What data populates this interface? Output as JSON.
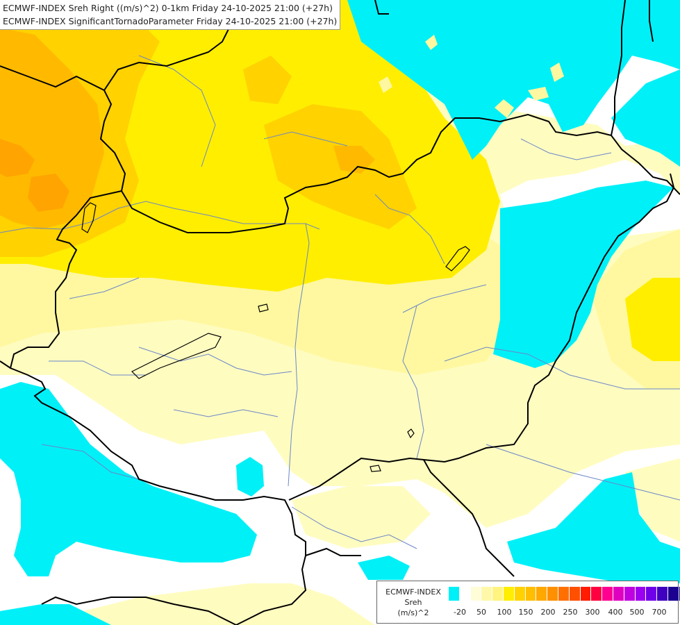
{
  "header": {
    "line1": "ECMWF-INDEX Sreh Right ((m/s)^2) 0-1km Friday 24-10-2025 21:00 (+27h)",
    "line2": "ECMWF-INDEX SignificantTornadoParameter Friday 24-10-2025 21:00 (+27h)"
  },
  "legend": {
    "line1": "ECMWF-INDEX",
    "line2": "Sreh",
    "line3": "(m/s)^2",
    "colors": [
      "#00f0f8",
      "#ffffff",
      "#fffcd8",
      "#fff8a8",
      "#fff480",
      "#ffee00",
      "#ffd200",
      "#ffbe00",
      "#ffa800",
      "#ff9000",
      "#ff7000",
      "#ff5000",
      "#ff1c00",
      "#ff0040",
      "#ff0090",
      "#e000c0",
      "#c000e0",
      "#9c00f0",
      "#7000e8",
      "#4000c0",
      "#1c0090",
      "#000070"
    ],
    "ticks": [
      "-20",
      "50",
      "100",
      "150",
      "200",
      "250",
      "300",
      "400",
      "500",
      "700"
    ]
  },
  "palette": {
    "cyan": "#00f0f8",
    "white": "#ffffff",
    "pale_yellow": "#fffcc0",
    "light_yellow": "#fff8a0",
    "yellow": "#ffee00",
    "gold": "#ffd200",
    "orange": "#ffba00",
    "deep_orange": "#ffa400",
    "border": "#000000",
    "river": "#6a86c8"
  }
}
